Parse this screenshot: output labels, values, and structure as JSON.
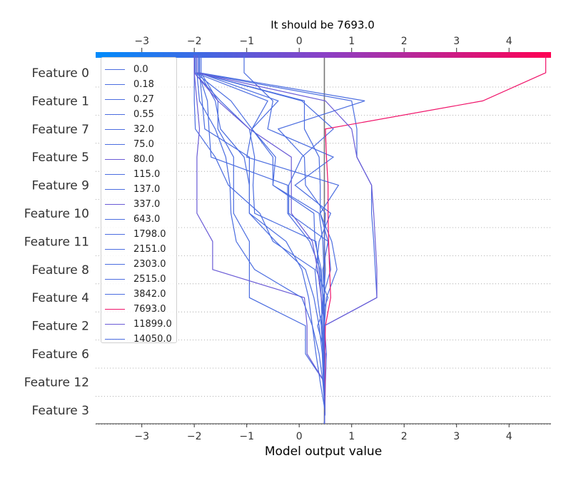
{
  "chart_data": {
    "type": "line",
    "title": "It should be 7693.0",
    "xlabel": "Model output value",
    "ylabel": "",
    "xlim": [
      -3.88,
      4.8
    ],
    "x_ticks": [
      -3,
      -2,
      -1,
      0,
      1,
      2,
      3,
      4
    ],
    "x_tick_labels": [
      "−3",
      "−2",
      "−1",
      "0",
      "1",
      "2",
      "3",
      "4"
    ],
    "base_value": 0.48,
    "features": [
      "Feature 0",
      "Feature 1",
      "Feature 7",
      "Feature 5",
      "Feature 9",
      "Feature 10",
      "Feature 11",
      "Feature 8",
      "Feature 4",
      "Feature 2",
      "Feature 6",
      "Feature 12",
      "Feature 3"
    ],
    "colorbar": {
      "low_color": "#008bfb",
      "mid_color": "#8a40c6",
      "high_color": "#ff0052"
    },
    "grid": "dotted horizontal",
    "legend_position": "upper-left",
    "series": [
      {
        "name": "0.0",
        "color": "#4b6de0",
        "values": [
          -1.05,
          -0.5,
          -0.6,
          0.65,
          -0.08,
          0.6,
          0.38,
          0.32,
          0.55,
          0.35,
          0.5,
          0.47,
          0.49
        ]
      },
      {
        "name": "0.18",
        "color": "#4b6de0",
        "values": [
          -2.0,
          -2.0,
          -1.98,
          -1.6,
          -1.35,
          -0.75,
          -0.5,
          0.3,
          0.35,
          0.42,
          0.45,
          0.47,
          0.49
        ]
      },
      {
        "name": "0.27",
        "color": "#4b6de0",
        "values": [
          -1.9,
          -1.85,
          -1.8,
          -0.95,
          -0.95,
          -0.95,
          -0.45,
          0.12,
          0.28,
          0.38,
          0.44,
          0.46,
          0.49
        ]
      },
      {
        "name": "0.55",
        "color": "#4b6de0",
        "values": [
          -1.9,
          -1.6,
          -1.5,
          -1.05,
          -0.95,
          -0.95,
          -0.25,
          0.05,
          0.18,
          0.25,
          0.32,
          0.4,
          0.49
        ]
      },
      {
        "name": "32.0",
        "color": "#4b6de0",
        "values": [
          -1.92,
          -1.75,
          -1.72,
          -1.68,
          -0.22,
          -0.22,
          0.2,
          0.4,
          0.45,
          0.47,
          0.48,
          0.48,
          0.49
        ]
      },
      {
        "name": "75.0",
        "color": "#4b6de0",
        "values": [
          -1.87,
          -1.55,
          -1.55,
          -1.25,
          -1.25,
          -1.25,
          -0.95,
          -0.95,
          -0.95,
          0.12,
          0.12,
          0.48,
          0.49
        ]
      },
      {
        "name": "80.0",
        "color": "#6a5bd6",
        "values": [
          -2.0,
          -1.95,
          -1.9,
          -1.95,
          -1.95,
          -1.95,
          -1.65,
          -1.65,
          0.1,
          0.15,
          0.15,
          0.48,
          0.49
        ]
      },
      {
        "name": "115.0",
        "color": "#4b6de0",
        "values": [
          -1.95,
          -1.9,
          -1.6,
          -1.4,
          -1.32,
          -1.3,
          -1.2,
          -0.85,
          0.05,
          0.25,
          0.38,
          0.45,
          0.49
        ]
      },
      {
        "name": "137.0",
        "color": "#4b6de0",
        "values": [
          -2.0,
          -1.5,
          -0.95,
          -0.85,
          -0.88,
          -0.85,
          0.32,
          0.38,
          0.42,
          0.44,
          0.47,
          0.48,
          0.49
        ]
      },
      {
        "name": "337.0",
        "color": "#6a5bd6",
        "values": [
          -2.0,
          -1.55,
          -0.95,
          -0.15,
          -0.15,
          -0.15,
          0.25,
          0.35,
          0.42,
          0.48,
          0.52,
          0.5,
          0.49
        ]
      },
      {
        "name": "643.0",
        "color": "#4b6de0",
        "values": [
          -1.95,
          0.05,
          0.65,
          0.05,
          -0.2,
          -0.2,
          0.55,
          0.6,
          0.45,
          0.42,
          0.46,
          0.48,
          0.49
        ]
      },
      {
        "name": "1798.0",
        "color": "#4b6de0",
        "values": [
          -1.9,
          1.25,
          -0.4,
          0.1,
          0.12,
          0.5,
          0.48,
          0.5,
          0.47,
          0.46,
          0.47,
          0.48,
          0.49
        ]
      },
      {
        "name": "2151.0",
        "color": "#4b6de0",
        "values": [
          -1.92,
          -0.4,
          -0.9,
          -1.0,
          0.75,
          0.4,
          0.62,
          0.72,
          0.52,
          0.48,
          0.47,
          0.48,
          0.49
        ]
      },
      {
        "name": "2303.0",
        "color": "#4b6de0",
        "values": [
          -1.95,
          0.1,
          0.1,
          0.38,
          0.4,
          0.4,
          0.55,
          0.45,
          0.48,
          0.47,
          0.48,
          0.48,
          0.49
        ]
      },
      {
        "name": "2515.0",
        "color": "#4b6de0",
        "values": [
          -1.98,
          -1.3,
          -0.9,
          -0.5,
          -0.5,
          0.28,
          0.3,
          0.42,
          0.45,
          0.47,
          0.48,
          0.48,
          0.49
        ]
      },
      {
        "name": "3842.0",
        "color": "#4b6de0",
        "values": [
          -1.95,
          1.0,
          1.1,
          1.1,
          1.38,
          1.38,
          1.42,
          1.45,
          1.48,
          0.48,
          0.48,
          0.48,
          0.49
        ]
      },
      {
        "name": "7693.0",
        "color": "#f0146a",
        "values": [
          4.7,
          3.5,
          0.5,
          0.52,
          0.55,
          0.55,
          0.56,
          0.58,
          0.6,
          0.5,
          0.49,
          0.49,
          0.49
        ]
      },
      {
        "name": "11899.0",
        "color": "#6a5bd6",
        "values": [
          -1.95,
          0.5,
          1.0,
          1.1,
          1.38,
          1.42,
          1.45,
          1.48,
          1.48,
          0.48,
          0.48,
          0.48,
          0.49
        ]
      },
      {
        "name": "14050.0",
        "color": "#4b6de0",
        "values": [
          -1.98,
          -0.6,
          -0.9,
          -0.45,
          -0.5,
          0.38,
          0.45,
          0.47,
          0.48,
          0.48,
          0.48,
          0.48,
          0.49
        ]
      }
    ]
  }
}
